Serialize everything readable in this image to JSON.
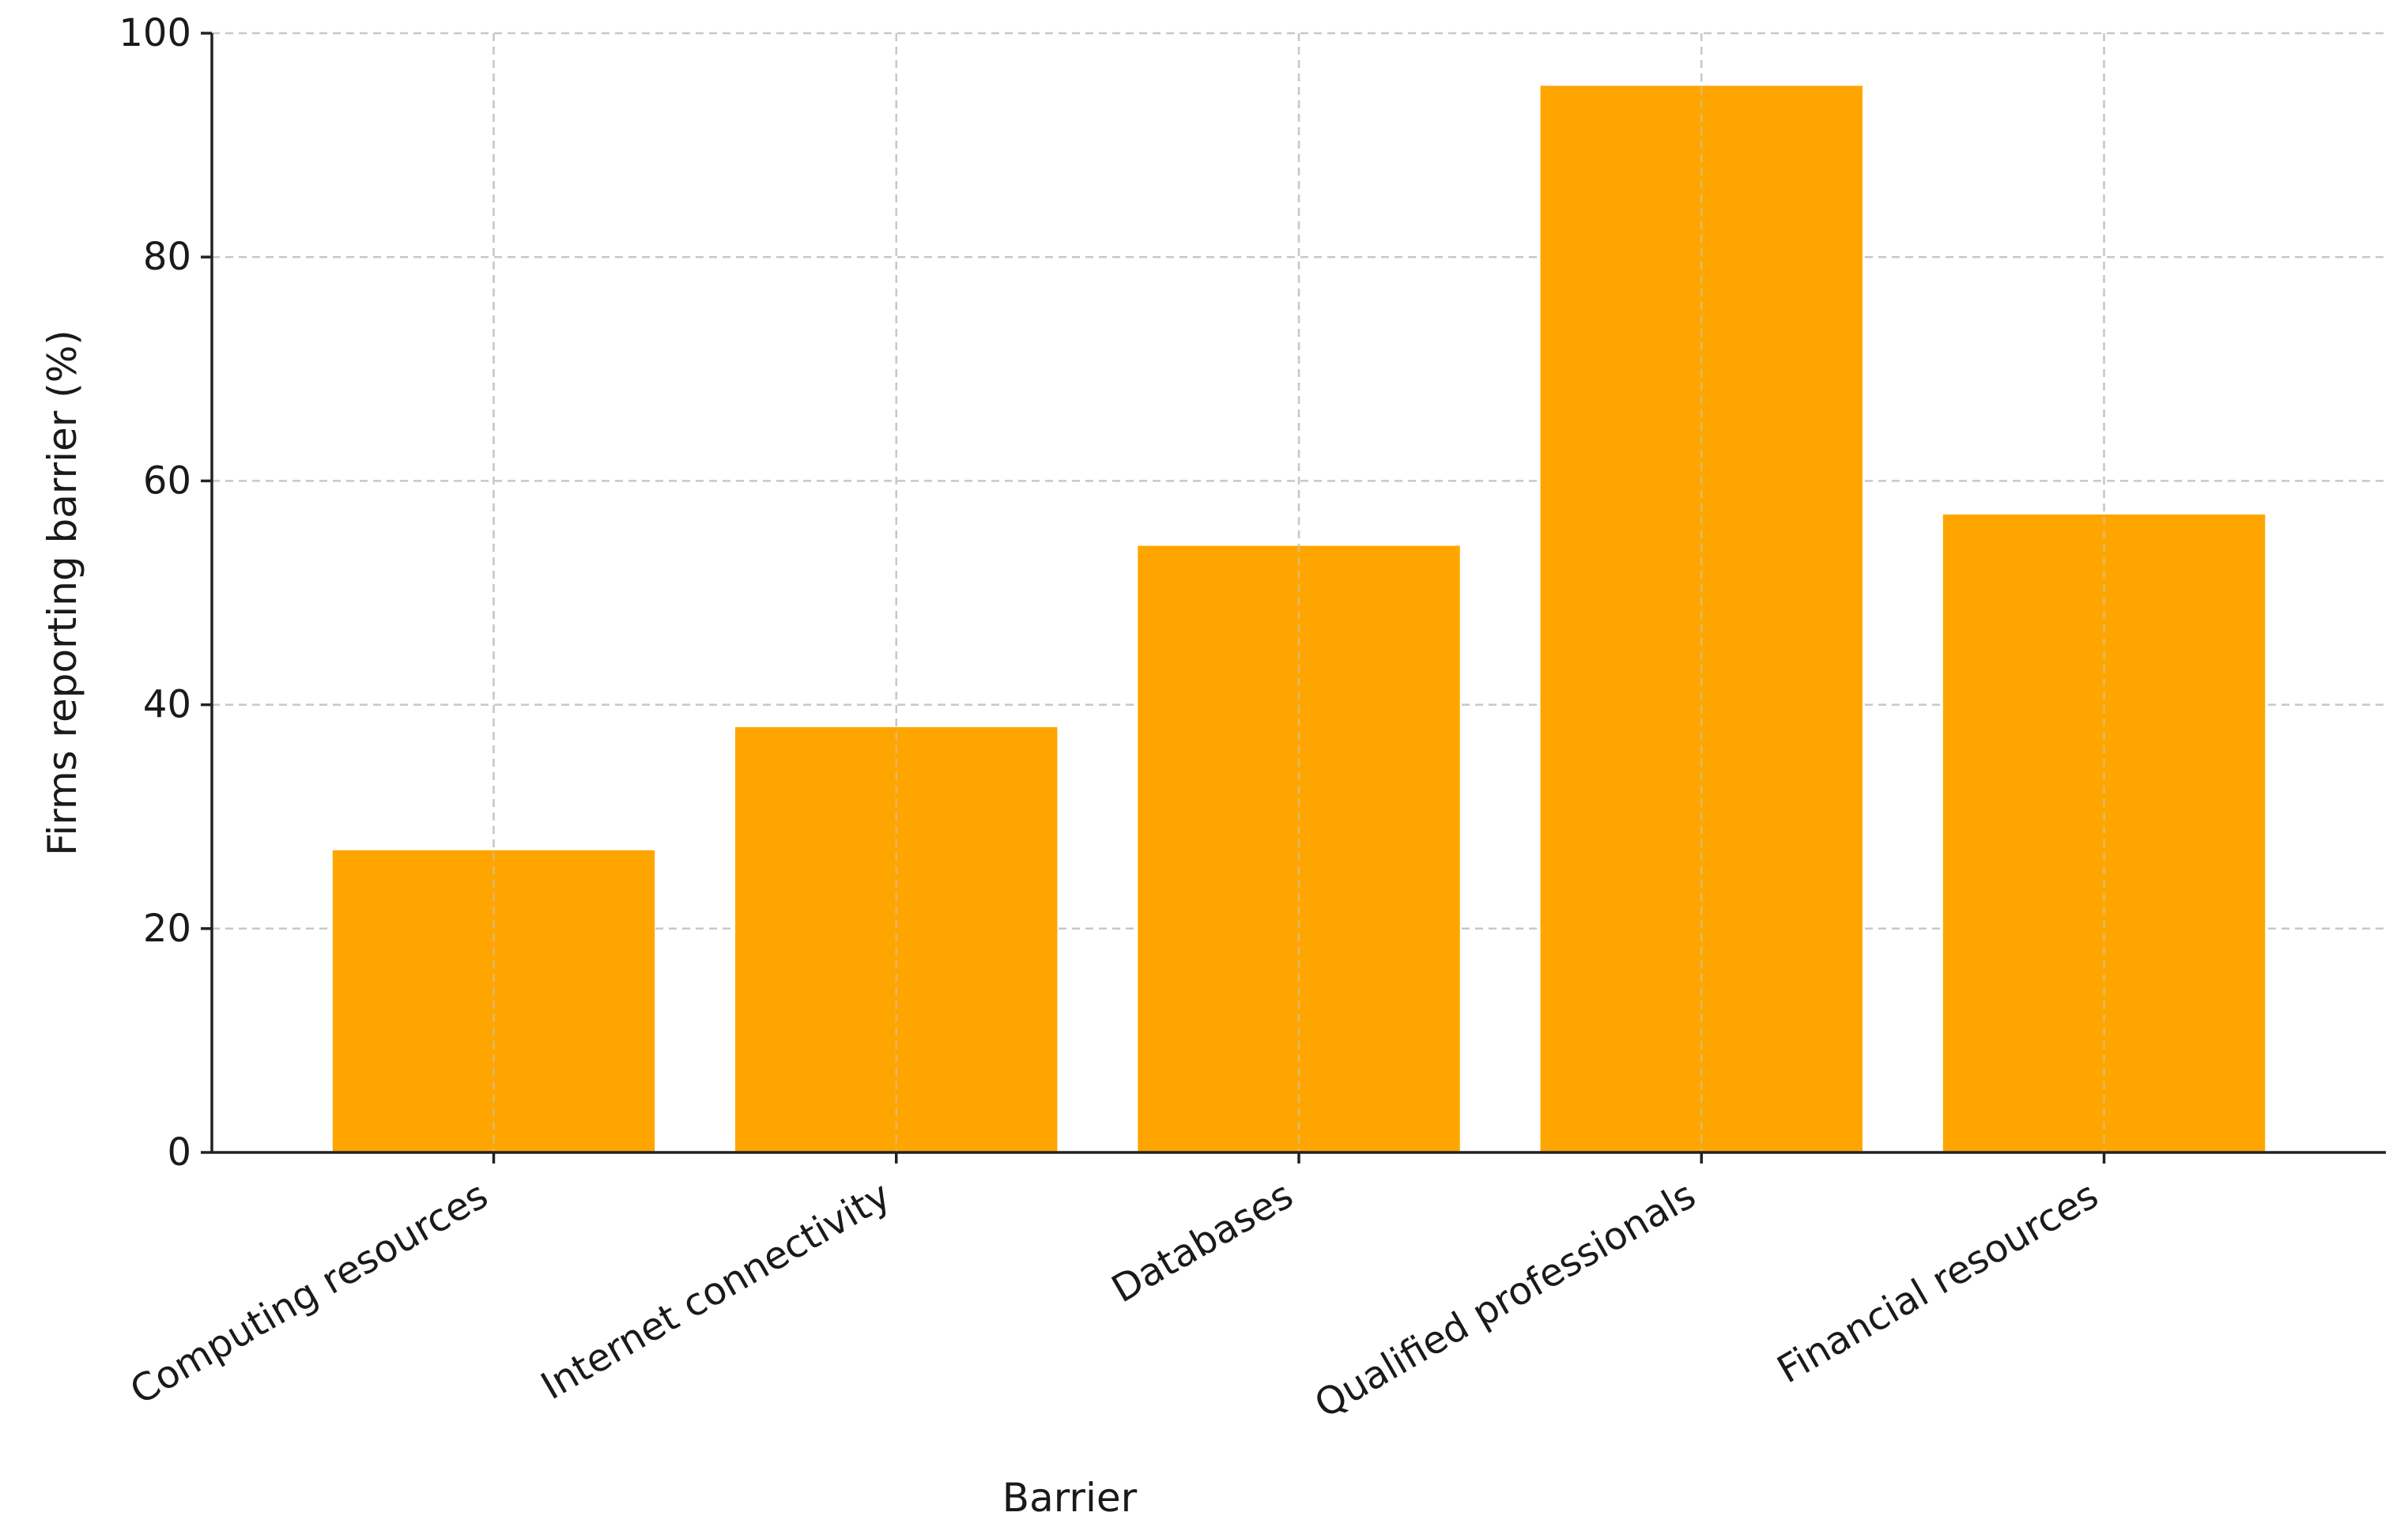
{
  "chart_data": {
    "type": "bar",
    "title": "",
    "xlabel": "Barrier",
    "ylabel": "Firms reporting barrier (%)",
    "categories": [
      "Computing resources",
      "Internet connectivity",
      "Databases",
      "Qualified professionals",
      "Financial resources"
    ],
    "values": [
      27,
      38,
      54.2,
      95.3,
      57
    ],
    "ylim": [
      0,
      100
    ],
    "yticks": [
      0,
      20,
      40,
      60,
      80,
      100
    ],
    "grid": true,
    "bar_color": "#FFA500"
  }
}
